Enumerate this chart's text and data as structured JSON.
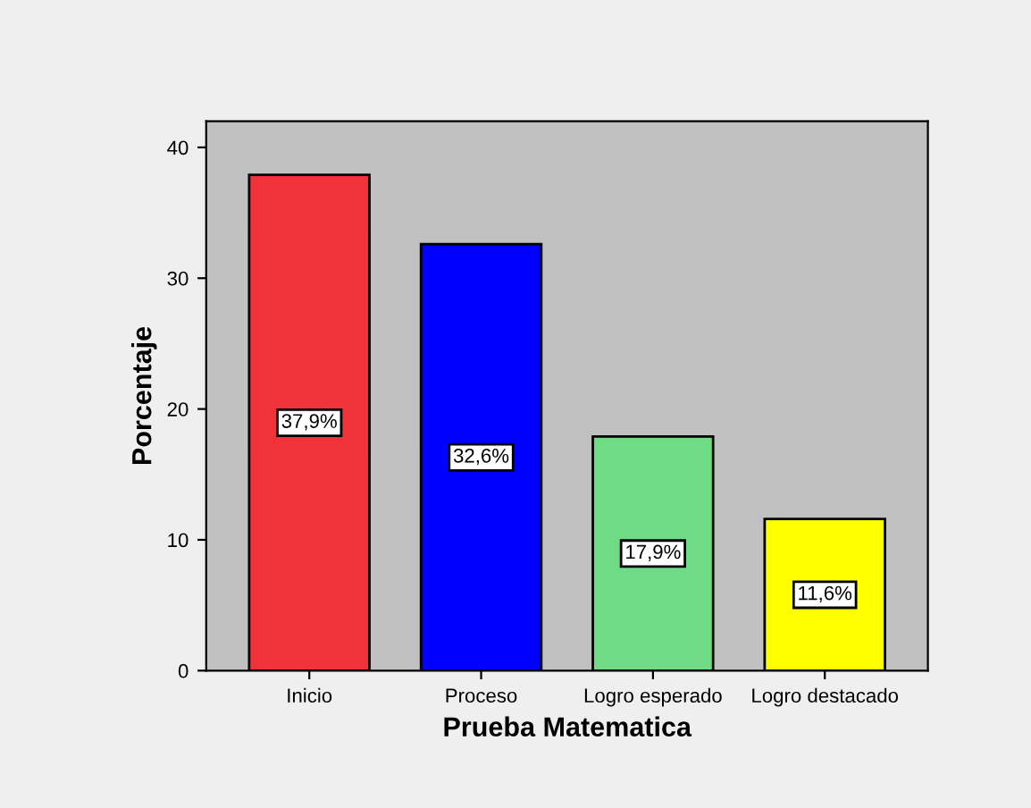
{
  "chart_data": {
    "type": "bar",
    "xlabel": "Prueba Matematica",
    "ylabel": "Porcentaje",
    "categories": [
      "Inicio",
      "Proceso",
      "Logro esperado",
      "Logro destacado"
    ],
    "values": [
      37.9,
      32.6,
      17.9,
      11.6
    ],
    "colors": [
      "#f0323a",
      "#0000ff",
      "#6fdc85",
      "#ffff00"
    ],
    "value_labels": [
      "37,9%",
      "32,6%",
      "17,9%",
      "11,6%"
    ],
    "ylim": [
      0,
      42
    ],
    "yticks": [
      0,
      10,
      20,
      30,
      40
    ],
    "grid": false,
    "legend": false
  }
}
